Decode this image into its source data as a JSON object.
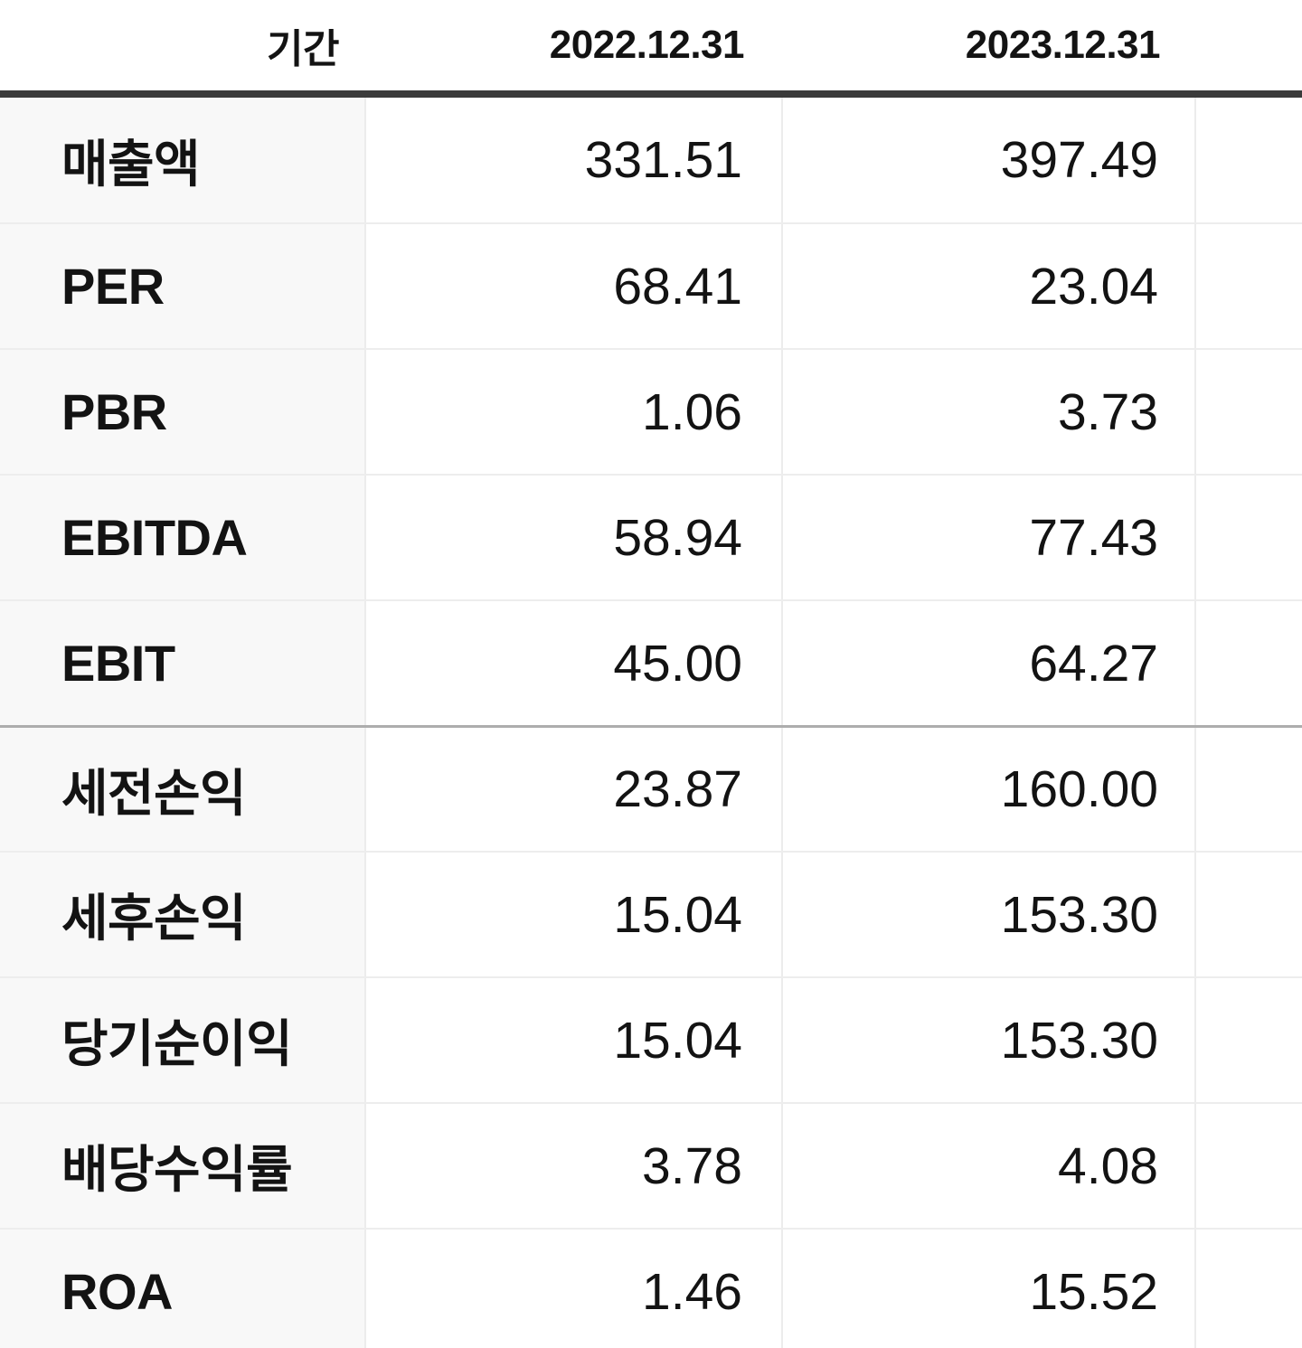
{
  "table": {
    "header": {
      "period_label": "기간",
      "columns": [
        "2022.12.31",
        "2023.12.31"
      ]
    },
    "rows": [
      {
        "label": "매출액",
        "values": [
          "331.51",
          "397.49"
        ],
        "section_start": false
      },
      {
        "label": "PER",
        "values": [
          "68.41",
          "23.04"
        ],
        "section_start": false
      },
      {
        "label": "PBR",
        "values": [
          "1.06",
          "3.73"
        ],
        "section_start": false
      },
      {
        "label": "EBITDA",
        "values": [
          "58.94",
          "77.43"
        ],
        "section_start": false
      },
      {
        "label": "EBIT",
        "values": [
          "45.00",
          "64.27"
        ],
        "section_start": false
      },
      {
        "label": "세전손익",
        "values": [
          "23.87",
          "160.00"
        ],
        "section_start": true
      },
      {
        "label": "세후손익",
        "values": [
          "15.04",
          "153.30"
        ],
        "section_start": false
      },
      {
        "label": "당기순이익",
        "values": [
          "15.04",
          "153.30"
        ],
        "section_start": false
      },
      {
        "label": "배당수익률",
        "values": [
          "3.78",
          "4.08"
        ],
        "section_start": false
      },
      {
        "label": "ROA",
        "values": [
          "1.46",
          "15.52"
        ],
        "section_start": false
      }
    ]
  },
  "colors": {
    "header_bar": "#3b3b3b",
    "label_column_bg": "#f8f8f8",
    "row_divider": "#ededed",
    "section_divider": "#adadad",
    "cell_divider": "#ececec",
    "text": "#131313",
    "background": "#ffffff"
  }
}
